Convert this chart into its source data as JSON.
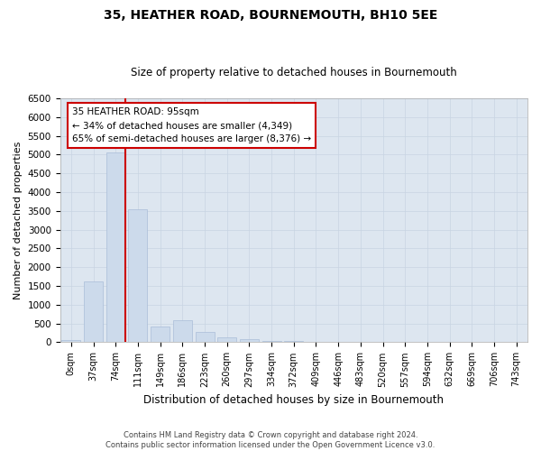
{
  "title": "35, HEATHER ROAD, BOURNEMOUTH, BH10 5EE",
  "subtitle": "Size of property relative to detached houses in Bournemouth",
  "xlabel": "Distribution of detached houses by size in Bournemouth",
  "ylabel": "Number of detached properties",
  "bar_color": "#ccdaeb",
  "bar_edge_color": "#aabdd8",
  "grid_color": "#c8d4e3",
  "background_color": "#dde6f0",
  "categories": [
    "0sqm",
    "37sqm",
    "74sqm",
    "111sqm",
    "149sqm",
    "186sqm",
    "223sqm",
    "260sqm",
    "297sqm",
    "334sqm",
    "372sqm",
    "409sqm",
    "446sqm",
    "483sqm",
    "520sqm",
    "557sqm",
    "594sqm",
    "632sqm",
    "669sqm",
    "706sqm",
    "743sqm"
  ],
  "values": [
    50,
    1620,
    5050,
    3550,
    410,
    590,
    270,
    125,
    85,
    45,
    25,
    15,
    8,
    4,
    2,
    1,
    1,
    0,
    0,
    0,
    0
  ],
  "ylim": [
    0,
    6500
  ],
  "yticks": [
    0,
    500,
    1000,
    1500,
    2000,
    2500,
    3000,
    3500,
    4000,
    4500,
    5000,
    5500,
    6000,
    6500
  ],
  "vline_color": "#cc0000",
  "annotation_title": "35 HEATHER ROAD: 95sqm",
  "annotation_line1": "← 34% of detached houses are smaller (4,349)",
  "annotation_line2": "65% of semi-detached houses are larger (8,376) →",
  "annotation_box_color": "#cc0000",
  "footer_line1": "Contains HM Land Registry data © Crown copyright and database right 2024.",
  "footer_line2": "Contains public sector information licensed under the Open Government Licence v3.0."
}
